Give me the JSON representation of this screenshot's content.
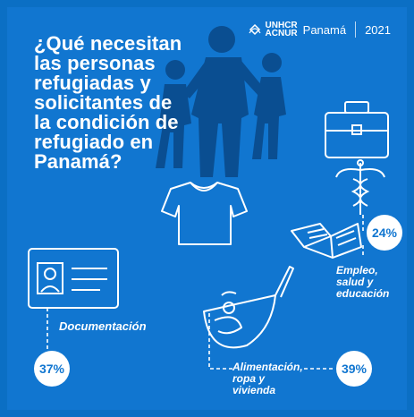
{
  "title_lines": [
    "¿Qué necesitan",
    "las personas",
    "refugiadas y",
    "solicitantes de",
    "la condición de",
    "refugiado en",
    "Panamá?"
  ],
  "brand": {
    "logo_line1": "UNHCR",
    "logo_line2": "ACNUR",
    "country": "Panamá",
    "year": "2021"
  },
  "categories": [
    {
      "label": "Documentación",
      "percent": "37%"
    },
    {
      "label": "Alimentación, ropa y vivienda",
      "label_lines": [
        "Alimentación,",
        "ropa y",
        "vivienda"
      ],
      "percent": "39%"
    },
    {
      "label": "Empleo, salud y educación",
      "label_lines": [
        "Empleo,",
        "salud y",
        "educación"
      ],
      "percent": "24%"
    }
  ],
  "colors": {
    "background": "#1176D0",
    "silhouette": "#0A4E91",
    "accent": "#ffffff"
  }
}
